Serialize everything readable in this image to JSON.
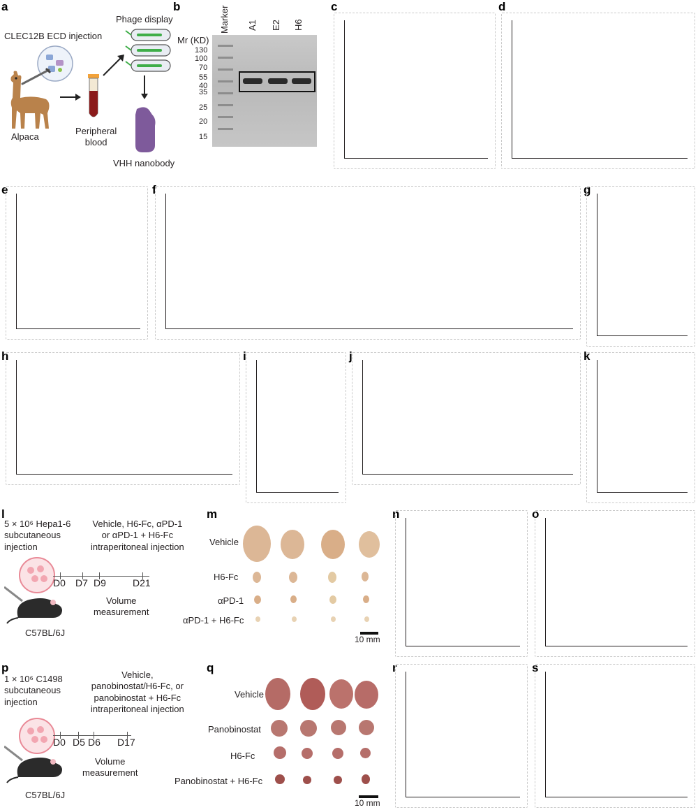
{
  "panel_letters": [
    "a",
    "b",
    "c",
    "d",
    "e",
    "f",
    "g",
    "h",
    "i",
    "j",
    "k",
    "l",
    "m",
    "n",
    "o",
    "p",
    "q",
    "r",
    "s"
  ],
  "panel_a": {
    "labels": {
      "injection": "CLEC12B ECD injection",
      "phage": "Phage display",
      "alpaca": "Alpaca",
      "blood": "Peripheral\nblood",
      "vhh": "VHH nanobody"
    },
    "colors": {
      "alpaca": "#b9824b",
      "tube_blood": "#8b1a1a",
      "nanobody": "#7e5a9b",
      "phage_green": "#3fae49"
    }
  },
  "panel_b": {
    "labels": {
      "marker": "Marker",
      "mr": "Mr (KD)",
      "lanes": [
        "A1",
        "E2",
        "H6"
      ],
      "mw": [
        "130",
        "100",
        "70",
        "55",
        "40",
        "35",
        "25",
        "20",
        "15"
      ]
    }
  },
  "panel_l": {
    "labels": {
      "cells": "5 × 10⁶ Hepa1-6\nsubcutaneous\ninjection",
      "treatment": "Vehicle, H6-Fc, αPD-1\nor αPD-1 + H6-Fc\nintraperitoneal injection",
      "days": [
        "D0",
        "D7",
        "D9",
        "D21"
      ],
      "measure": "Volume\nmeasurement",
      "mouse": "C57BL/6J"
    }
  },
  "panel_m": {
    "labels": {
      "rows": [
        "Vehicle",
        "H6-Fc",
        "αPD-1",
        "αPD-1 + H6-Fc"
      ],
      "scale": "10 mm"
    },
    "tumor_color": "#d9b48f"
  },
  "panel_p": {
    "labels": {
      "cells": "1 × 10⁶ C1498\nsubcutaneous\ninjection",
      "treatment": "Vehicle,\npanobinostat/H6-Fc, or\npanobinostat + H6-Fc\nintraperitoneal injection",
      "days": [
        "D0",
        "D5",
        "D6",
        "D17"
      ],
      "measure": "Volume\nmeasurement",
      "mouse": "C57BL/6J"
    }
  },
  "panel_q": {
    "labels": {
      "rows": [
        "Vehicle",
        "Panobinostat",
        "H6-Fc",
        "Panobinostat + H6-Fc"
      ],
      "scale": "10 mm"
    },
    "tumor_color": "#b45d55"
  }
}
